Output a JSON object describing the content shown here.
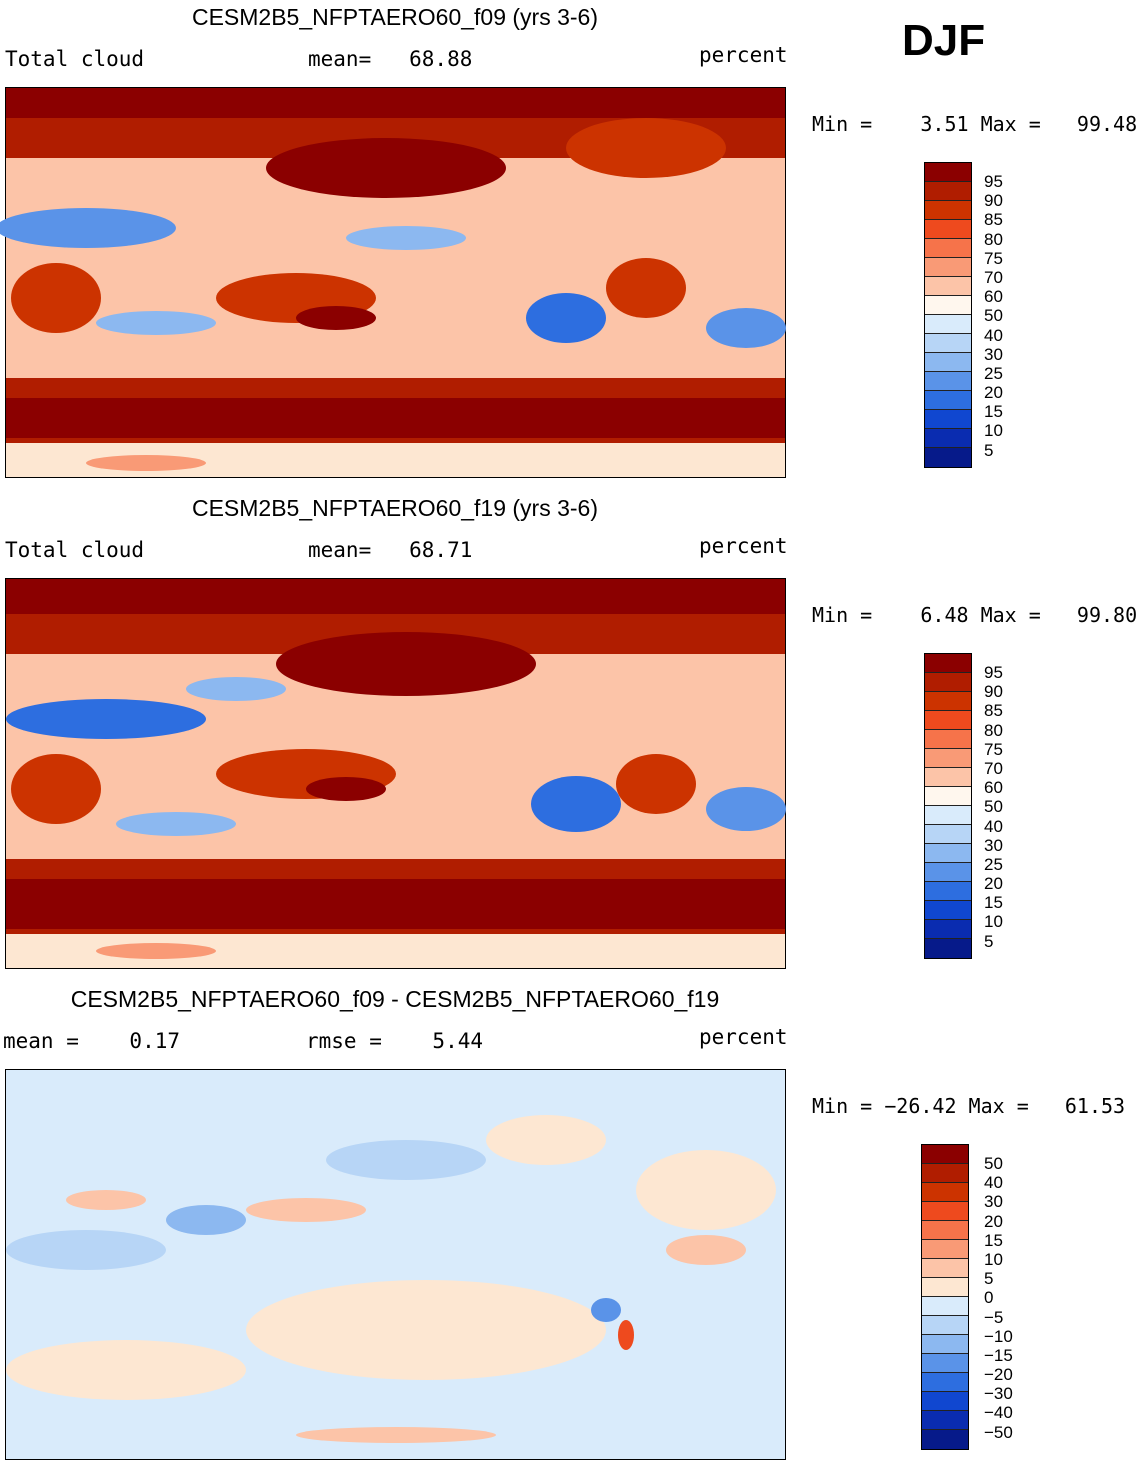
{
  "season": "DJF",
  "panels": [
    {
      "title": "CESM2B5_NFPTAERO60_f09 (yrs 3-6)",
      "left_label": "Total cloud",
      "center_label": "mean=   68.88",
      "units": "percent",
      "min_max": "Min =    3.51 Max =   99.48",
      "levels": [
        "95",
        "90",
        "85",
        "80",
        "75",
        "70",
        "60",
        "50",
        "40",
        "30",
        "25",
        "20",
        "15",
        "10",
        "5"
      ]
    },
    {
      "title": "CESM2B5_NFPTAERO60_f19 (yrs 3-6)",
      "left_label": "Total cloud",
      "center_label": "mean=   68.71",
      "units": "percent",
      "min_max": "Min =    6.48 Max =   99.80",
      "levels": [
        "95",
        "90",
        "85",
        "80",
        "75",
        "70",
        "60",
        "50",
        "40",
        "30",
        "25",
        "20",
        "15",
        "10",
        "5"
      ]
    },
    {
      "title": "CESM2B5_NFPTAERO60_f09 - CESM2B5_NFPTAERO60_f19",
      "left_label": "mean =    0.17",
      "center_label": "rmse =    5.44",
      "units": "percent",
      "min_max": "Min = −26.42 Max =   61.53",
      "levels": [
        "50",
        "40",
        "30",
        "20",
        "15",
        "10",
        "5",
        "0",
        "−5",
        "−10",
        "−15",
        "−20",
        "−30",
        "−40",
        "−50"
      ]
    }
  ],
  "colors": {
    "field_scale": [
      "#8b0000",
      "#b01d00",
      "#cc3300",
      "#ee4a1e",
      "#f6734a",
      "#f99a76",
      "#fcc4a8",
      "#fde7d2",
      "#fff7ee",
      "#d9ebfb",
      "#b7d5f6",
      "#8cb8f0",
      "#5a93e8",
      "#2d6ee0",
      "#1047d0",
      "#0a2cb0",
      "#061a8a"
    ],
    "diff_scale": [
      "#8b0000",
      "#b01d00",
      "#cc3300",
      "#ee4a1e",
      "#f6734a",
      "#f99a76",
      "#fcc4a8",
      "#fde7d2",
      "#d9ebfb",
      "#b7d5f6",
      "#8cb8f0",
      "#5a93e8",
      "#2d6ee0",
      "#1047d0",
      "#0a2cb0",
      "#061a8a"
    ]
  }
}
